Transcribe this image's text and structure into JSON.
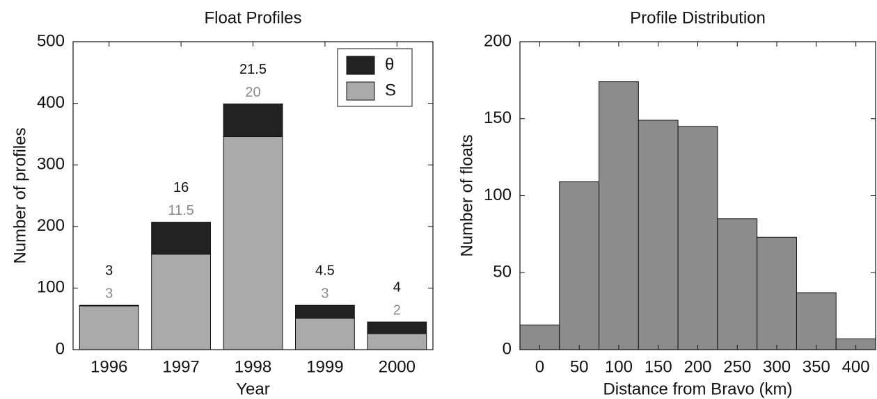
{
  "chart_data": [
    {
      "type": "stacked_bar",
      "title": "Float Profiles",
      "x_label": "Year",
      "y_label": "Number of profiles",
      "categories": [
        "1996",
        "1997",
        "1998",
        "1999",
        "2000"
      ],
      "series": [
        {
          "name": "S",
          "color": "#aaaaaa",
          "values": [
            71,
            155,
            346,
            51,
            26
          ]
        },
        {
          "name": "θ",
          "color": "#222222",
          "values": [
            1,
            52,
            53,
            21,
            19
          ]
        }
      ],
      "annotations": {
        "theta": [
          "3",
          "16",
          "21.5",
          "4.5",
          "4"
        ],
        "s": [
          "3",
          "11.5",
          "20",
          "3",
          "2"
        ]
      },
      "ylim": [
        0,
        500
      ],
      "yticks": [
        0,
        100,
        200,
        300,
        400,
        500
      ],
      "legend": "upper-right"
    },
    {
      "type": "histogram",
      "title": "Profile Distribution",
      "x_label": "Distance from Bravo (km)",
      "y_label": "Number of floats",
      "bins": [
        -25,
        25,
        75,
        125,
        175,
        225,
        275,
        325,
        375,
        425
      ],
      "values": [
        16,
        109,
        174,
        149,
        145,
        85,
        73,
        37,
        7
      ],
      "color": "#8c8c8c",
      "xlim": [
        -25,
        425
      ],
      "xticks": [
        0,
        50,
        100,
        150,
        200,
        250,
        300,
        350,
        400
      ],
      "ylim": [
        0,
        200
      ],
      "yticks": [
        0,
        50,
        100,
        150,
        200
      ]
    }
  ]
}
